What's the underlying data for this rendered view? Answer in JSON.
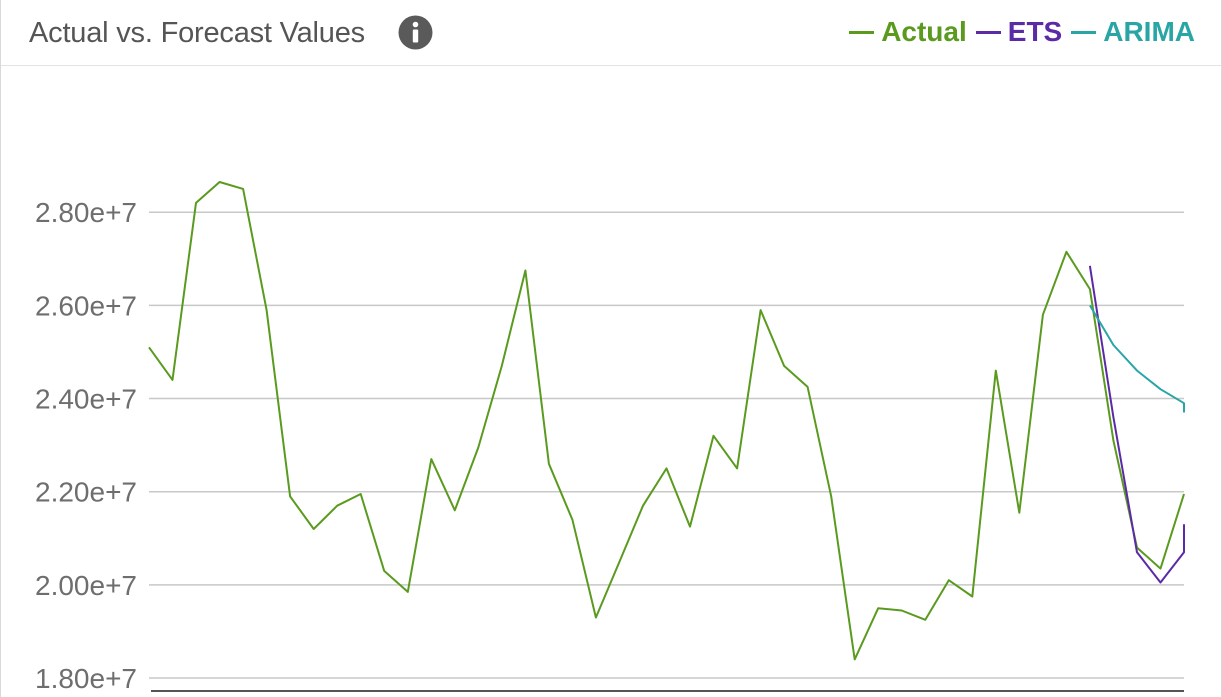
{
  "header": {
    "title": "Actual vs. Forecast Values",
    "info_icon": "info-circle-icon"
  },
  "chart_data": {
    "type": "line",
    "title": "Actual vs. Forecast Values",
    "xlabel": "",
    "ylabel": "",
    "ylim": [
      17700000,
      29100000
    ],
    "yticks": [
      18000000,
      20000000,
      22000000,
      24000000,
      26000000,
      28000000
    ],
    "ytick_labels": [
      "1.80e+7",
      "2.00e+7",
      "2.20e+7",
      "2.40e+7",
      "2.60e+7",
      "2.80e+7"
    ],
    "grid": true,
    "legend_position": "top-right",
    "x_count": 45,
    "series": [
      {
        "name": "Actual",
        "color": "#5a9a1f",
        "x": [
          0,
          1,
          2,
          3,
          4,
          5,
          6,
          7,
          8,
          9,
          10,
          11,
          12,
          13,
          14,
          15,
          16,
          17,
          18,
          19,
          20,
          21,
          22,
          23,
          24,
          25,
          26,
          27,
          28,
          29,
          30,
          31,
          32,
          33,
          34,
          35,
          36,
          37,
          38,
          39,
          40,
          41,
          42,
          43,
          44
        ],
        "values": [
          25100000,
          24400000,
          28200000,
          28650000,
          28500000,
          25900000,
          21900000,
          21200000,
          21700000,
          21950000,
          20300000,
          19850000,
          22700000,
          21600000,
          22950000,
          24700000,
          26750000,
          22600000,
          21400000,
          19300000,
          20500000,
          21700000,
          22500000,
          21250000,
          23200000,
          22500000,
          25900000,
          24700000,
          24250000,
          21900000,
          18400000,
          19500000,
          19450000,
          19250000,
          20100000,
          19750000,
          24600000,
          21550000,
          25800000,
          27150000,
          26350000,
          23100000,
          20800000,
          20350000,
          21950000
        ]
      },
      {
        "name": "ETS",
        "color": "#5b2aa5",
        "x": [
          40,
          41,
          42,
          43,
          44,
          45
        ],
        "values": [
          26850000,
          23600000,
          20700000,
          20050000,
          20700000,
          21300000
        ]
      },
      {
        "name": "ARIMA",
        "color": "#2aa5a5",
        "x": [
          40,
          41,
          42,
          43,
          44,
          45
        ],
        "values": [
          26000000,
          25150000,
          24600000,
          24200000,
          23900000,
          23700000
        ]
      }
    ]
  }
}
